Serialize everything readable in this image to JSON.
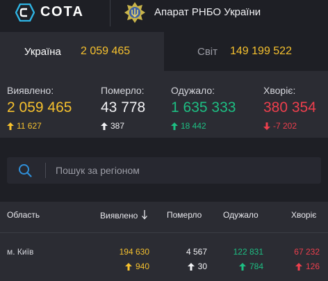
{
  "header": {
    "logo_text": "СОТА",
    "org_name": "Апарат РНБО України"
  },
  "tabs": [
    {
      "label": "Україна",
      "value": "2 059 465"
    },
    {
      "label": "Світ",
      "value": "149 199 522"
    }
  ],
  "stats": [
    {
      "label": "Виявлено:",
      "value": "2 059 465",
      "delta": "11 627",
      "direction": "up",
      "color": "#f6c12e",
      "delta_color": "#f6c12e"
    },
    {
      "label": "Померло:",
      "value": "43 778",
      "delta": "387",
      "direction": "up",
      "color": "#f2f2f5",
      "delta_color": "#f2f2f5"
    },
    {
      "label": "Одужало:",
      "value": "1 635 333",
      "delta": "18 442",
      "direction": "up",
      "color": "#1dbf83",
      "delta_color": "#1dbf83"
    },
    {
      "label": "Хворіє:",
      "value": "380 354",
      "delta": "-7 202",
      "direction": "down",
      "color": "#ee3f4d",
      "delta_color": "#ee3f4d"
    }
  ],
  "search": {
    "placeholder": "Пошук за регіоном",
    "value": ""
  },
  "table": {
    "headers": [
      "Область",
      "Виявлено",
      "Померло",
      "Одужало",
      "Хворіє"
    ],
    "sort_icon": "sort-down-arrow-icon",
    "rows": [
      {
        "region": "м. Київ",
        "detected": "194 630",
        "detected_delta": "940",
        "died": "4 567",
        "died_delta": "30",
        "recovered": "122 831",
        "recovered_delta": "784",
        "sick": "67 232",
        "sick_delta": "126"
      }
    ]
  },
  "colors": {
    "yellow": "#f6c12e",
    "green": "#1dbf83",
    "red": "#ee3f4d",
    "search_accent": "#2f8fd8"
  }
}
